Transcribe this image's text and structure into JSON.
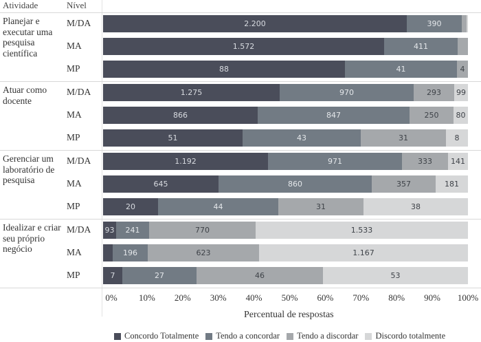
{
  "chart_data": {
    "type": "bar",
    "orientation": "horizontal",
    "stacked": "percent",
    "title": "",
    "xlabel": "Percentual de respostas",
    "ylabel": "",
    "xlim": [
      0,
      100
    ],
    "x_ticks": [
      "0%",
      "10%",
      "20%",
      "30%",
      "40%",
      "50%",
      "60%",
      "70%",
      "80%",
      "90%",
      "100%"
    ],
    "column_headers": {
      "activity": "Atividade",
      "level": "Nível"
    },
    "legend_position": "bottom",
    "series": [
      {
        "name": "Concordo Totalmente",
        "color": "#4a4d5a",
        "label_color": "#d8dbe0"
      },
      {
        "name": "Tendo a concordar",
        "color": "#727b84",
        "label_color": "#e4e7ea"
      },
      {
        "name": "Tendo a discordar",
        "color": "#a5a8ab",
        "label_color": "#3e4248"
      },
      {
        "name": "Discordo totalmente",
        "color": "#d6d7d8",
        "label_color": "#3e4248"
      }
    ],
    "groups": [
      {
        "activity": "Planejar e executar uma pesquisa científica",
        "rows": [
          {
            "level": "M/DA",
            "labels": [
              "2.200",
              "390",
              "",
              ""
            ],
            "percents": [
              83.2,
              15.1,
              1.3,
              0.4
            ]
          },
          {
            "level": "MA",
            "labels": [
              "1.572",
              "411",
              "",
              ""
            ],
            "percents": [
              77.1,
              20.0,
              2.9,
              0.0
            ]
          },
          {
            "level": "MP",
            "labels": [
              "88",
              "41",
              "4",
              ""
            ],
            "percents": [
              66.2,
              30.8,
              3.0,
              0.0
            ]
          }
        ]
      },
      {
        "activity": "Atuar como docente",
        "rows": [
          {
            "level": "M/DA",
            "labels": [
              "1.275",
              "970",
              "293",
              "99"
            ],
            "percents": [
              48.4,
              36.8,
              11.1,
              3.7
            ]
          },
          {
            "level": "MA",
            "labels": [
              "866",
              "847",
              "250",
              "80"
            ],
            "percents": [
              42.4,
              41.5,
              12.2,
              3.9
            ]
          },
          {
            "level": "MP",
            "labels": [
              "51",
              "43",
              "31",
              "8"
            ],
            "percents": [
              38.3,
              32.3,
              23.3,
              6.1
            ]
          }
        ]
      },
      {
        "activity": "Gerenciar um laboratório de pesquisa",
        "rows": [
          {
            "level": "M/DA",
            "labels": [
              "1.192",
              "971",
              "333",
              "141"
            ],
            "percents": [
              45.2,
              36.8,
              12.6,
              5.4
            ]
          },
          {
            "level": "MA",
            "labels": [
              "645",
              "860",
              "357",
              "181"
            ],
            "percents": [
              31.6,
              42.1,
              17.5,
              8.8
            ]
          },
          {
            "level": "MP",
            "labels": [
              "20",
              "44",
              "31",
              "38"
            ],
            "percents": [
              15.0,
              33.1,
              23.3,
              28.6
            ]
          }
        ]
      },
      {
        "activity": "Idealizar e criar seu próprio negócio",
        "rows": [
          {
            "level": "M/DA",
            "labels": [
              "93",
              "241",
              "770",
              "1.533"
            ],
            "percents": [
              3.5,
              9.1,
              29.2,
              58.2
            ]
          },
          {
            "level": "MA",
            "labels": [
              "",
              "196",
              "623",
              "1.167"
            ],
            "percents": [
              2.7,
              9.6,
              30.5,
              57.2
            ]
          },
          {
            "level": "MP",
            "labels": [
              "7",
              "27",
              "46",
              "53"
            ],
            "percents": [
              5.3,
              20.3,
              34.6,
              39.8
            ]
          }
        ]
      }
    ]
  }
}
